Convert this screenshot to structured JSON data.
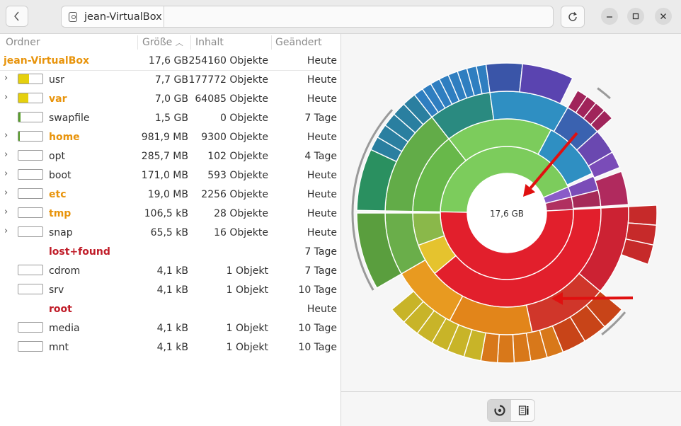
{
  "window": {
    "path_segment": "jean-VirtualBox"
  },
  "columns": {
    "folder": "Ordner",
    "size": "Größe",
    "content": "Inhalt",
    "changed": "Geändert"
  },
  "root": {
    "name": "jean-VirtualBox",
    "size": "17,6 GB",
    "content": "254160 Objekte",
    "changed": "Heute"
  },
  "rows": [
    {
      "name": "usr",
      "size": "7,7 GB",
      "content": "177772 Objekte",
      "changed": "Heute",
      "expandable": true,
      "fill": 0.44,
      "name_color": "#303030"
    },
    {
      "name": "var",
      "size": "7,0 GB",
      "content": "64085 Objekte",
      "changed": "Heute",
      "expandable": true,
      "fill": 0.4,
      "name_color": "#e8940c"
    },
    {
      "name": "swapfile",
      "size": "1,5 GB",
      "content": "0 Objekte",
      "changed": "7 Tage",
      "expandable": false,
      "fill": 0.085,
      "name_color": "#303030"
    },
    {
      "name": "home",
      "size": "981,9 MB",
      "content": "9300 Objekte",
      "changed": "Heute",
      "expandable": true,
      "fill": 0.055,
      "name_color": "#e8940c"
    },
    {
      "name": "opt",
      "size": "285,7 MB",
      "content": "102 Objekte",
      "changed": "4 Tage",
      "expandable": true,
      "fill": 0,
      "name_color": "#303030"
    },
    {
      "name": "boot",
      "size": "171,0 MB",
      "content": "593 Objekte",
      "changed": "Heute",
      "expandable": true,
      "fill": 0,
      "name_color": "#303030"
    },
    {
      "name": "etc",
      "size": "19,0 MB",
      "content": "2256 Objekte",
      "changed": "Heute",
      "expandable": true,
      "fill": 0,
      "name_color": "#e8940c"
    },
    {
      "name": "tmp",
      "size": "106,5 kB",
      "content": "28 Objekte",
      "changed": "Heute",
      "expandable": true,
      "fill": 0,
      "name_color": "#e8940c"
    },
    {
      "name": "snap",
      "size": "65,5 kB",
      "content": "16 Objekte",
      "changed": "Heute",
      "expandable": true,
      "fill": 0,
      "name_color": "#303030"
    },
    {
      "name": "lost+found",
      "size": "",
      "content": "",
      "changed": "7 Tage",
      "expandable": false,
      "fill": null,
      "name_color": "#c01c28"
    },
    {
      "name": "cdrom",
      "size": "4,1 kB",
      "content": "1 Objekt",
      "changed": "7 Tage",
      "expandable": false,
      "fill": 0,
      "name_color": "#303030"
    },
    {
      "name": "srv",
      "size": "4,1 kB",
      "content": "1 Objekt",
      "changed": "10 Tage",
      "expandable": false,
      "fill": 0,
      "name_color": "#303030"
    },
    {
      "name": "root",
      "size": "",
      "content": "",
      "changed": "Heute",
      "expandable": false,
      "fill": null,
      "name_color": "#c01c28"
    },
    {
      "name": "media",
      "size": "4,1 kB",
      "content": "1 Objekt",
      "changed": "10 Tage",
      "expandable": false,
      "fill": 0,
      "name_color": "#303030"
    },
    {
      "name": "mnt",
      "size": "4,1 kB",
      "content": "1 Objekt",
      "changed": "10 Tage",
      "expandable": false,
      "fill": 0,
      "name_color": "#303030"
    }
  ],
  "chart": {
    "center_label": "17,6 GB"
  },
  "colors": {
    "accent_orange": "#e8940c",
    "error_red": "#c01c28",
    "bar_fill_yellow": "#e5d00e",
    "bar_fill_green": "#5aa02c",
    "annotation_arrow": "#e01010"
  },
  "icons": {
    "back": "chevron-left-icon",
    "disk": "disk-icon",
    "reload": "reload-icon",
    "minimize": "minimize-icon",
    "maximize": "maximize-icon",
    "close": "close-icon",
    "rings_view": "rings-chart-icon",
    "treemap_view": "treemap-chart-icon"
  }
}
